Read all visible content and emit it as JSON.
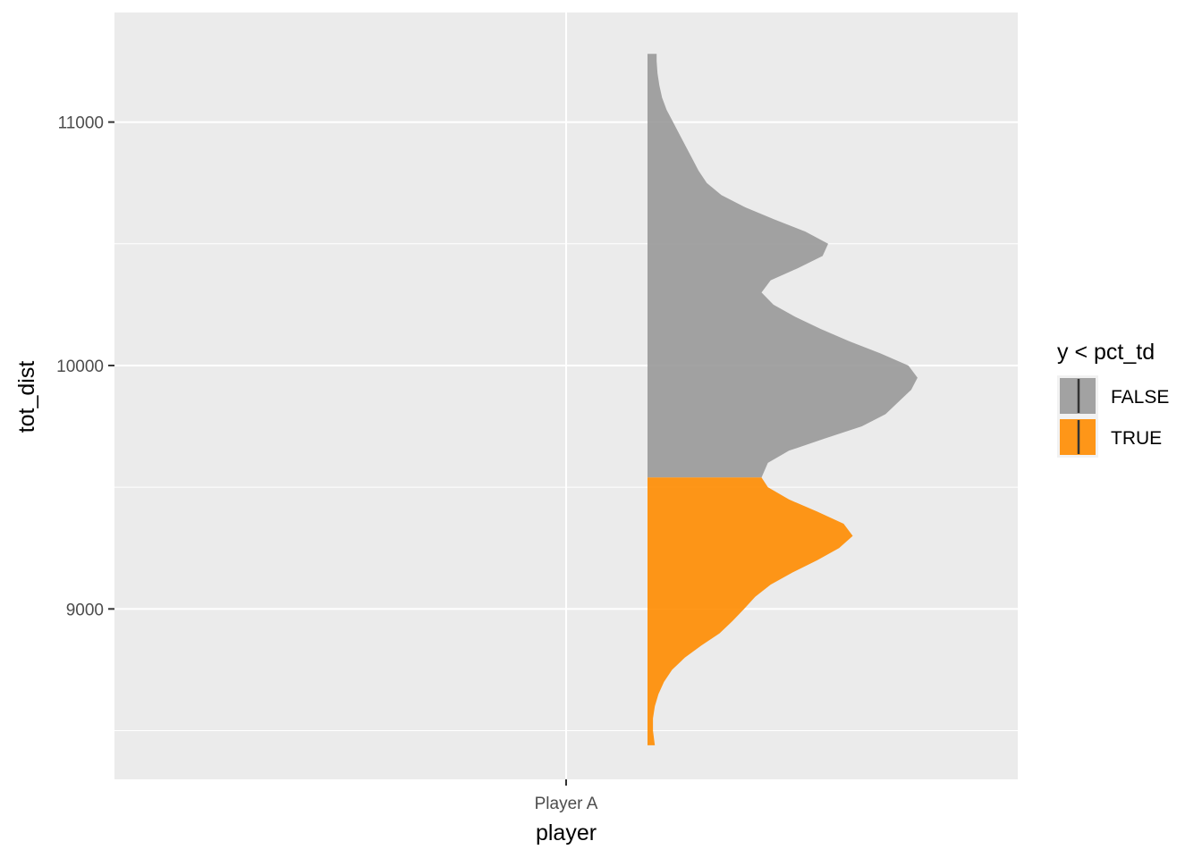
{
  "chart_data": {
    "type": "area",
    "subtype": "half-violin density (slab)",
    "orientation": "vertical",
    "title": "",
    "xlabel": "player",
    "ylabel": "tot_dist",
    "categories": [
      "Player A"
    ],
    "y_ticks": [
      9000,
      10000,
      11000
    ],
    "y_tick_labels": [
      "9000",
      "10000",
      "11000"
    ],
    "ylim": [
      8300,
      11450
    ],
    "grid": true,
    "legend": {
      "title": "y < pct_td",
      "position": "right",
      "entries": [
        {
          "label": "FALSE",
          "color": "#999999"
        },
        {
          "label": "TRUE",
          "color": "#FF8C00"
        }
      ]
    },
    "split_value": 9540,
    "density": {
      "y": [
        8440,
        8500,
        8550,
        8600,
        8650,
        8700,
        8750,
        8800,
        8850,
        8900,
        8950,
        9000,
        9050,
        9100,
        9150,
        9200,
        9250,
        9300,
        9350,
        9400,
        9450,
        9500,
        9540,
        9600,
        9650,
        9700,
        9750,
        9800,
        9850,
        9900,
        9950,
        10000,
        10050,
        10100,
        10150,
        10200,
        10250,
        10300,
        10350,
        10400,
        10450,
        10500,
        10550,
        10600,
        10650,
        10700,
        10750,
        10800,
        10850,
        10900,
        10950,
        11000,
        11050,
        11100,
        11150,
        11200,
        11250,
        11280
      ],
      "value": [
        0.08,
        0.06,
        0.06,
        0.08,
        0.12,
        0.18,
        0.27,
        0.41,
        0.59,
        0.79,
        0.93,
        1.06,
        1.18,
        1.35,
        1.59,
        1.86,
        2.1,
        2.25,
        2.15,
        1.86,
        1.55,
        1.32,
        1.25,
        1.32,
        1.55,
        1.94,
        2.35,
        2.61,
        2.75,
        2.89,
        2.96,
        2.86,
        2.55,
        2.21,
        1.9,
        1.62,
        1.38,
        1.25,
        1.35,
        1.65,
        1.92,
        1.98,
        1.73,
        1.39,
        1.07,
        0.81,
        0.65,
        0.56,
        0.49,
        0.42,
        0.35,
        0.28,
        0.21,
        0.16,
        0.13,
        0.11,
        0.1,
        0.1
      ]
    },
    "series": [
      {
        "name": "FALSE",
        "range": [
          9540,
          11280
        ],
        "color": "#999999"
      },
      {
        "name": "TRUE",
        "range": [
          8440,
          9540
        ],
        "color": "#FF8C00"
      }
    ]
  }
}
